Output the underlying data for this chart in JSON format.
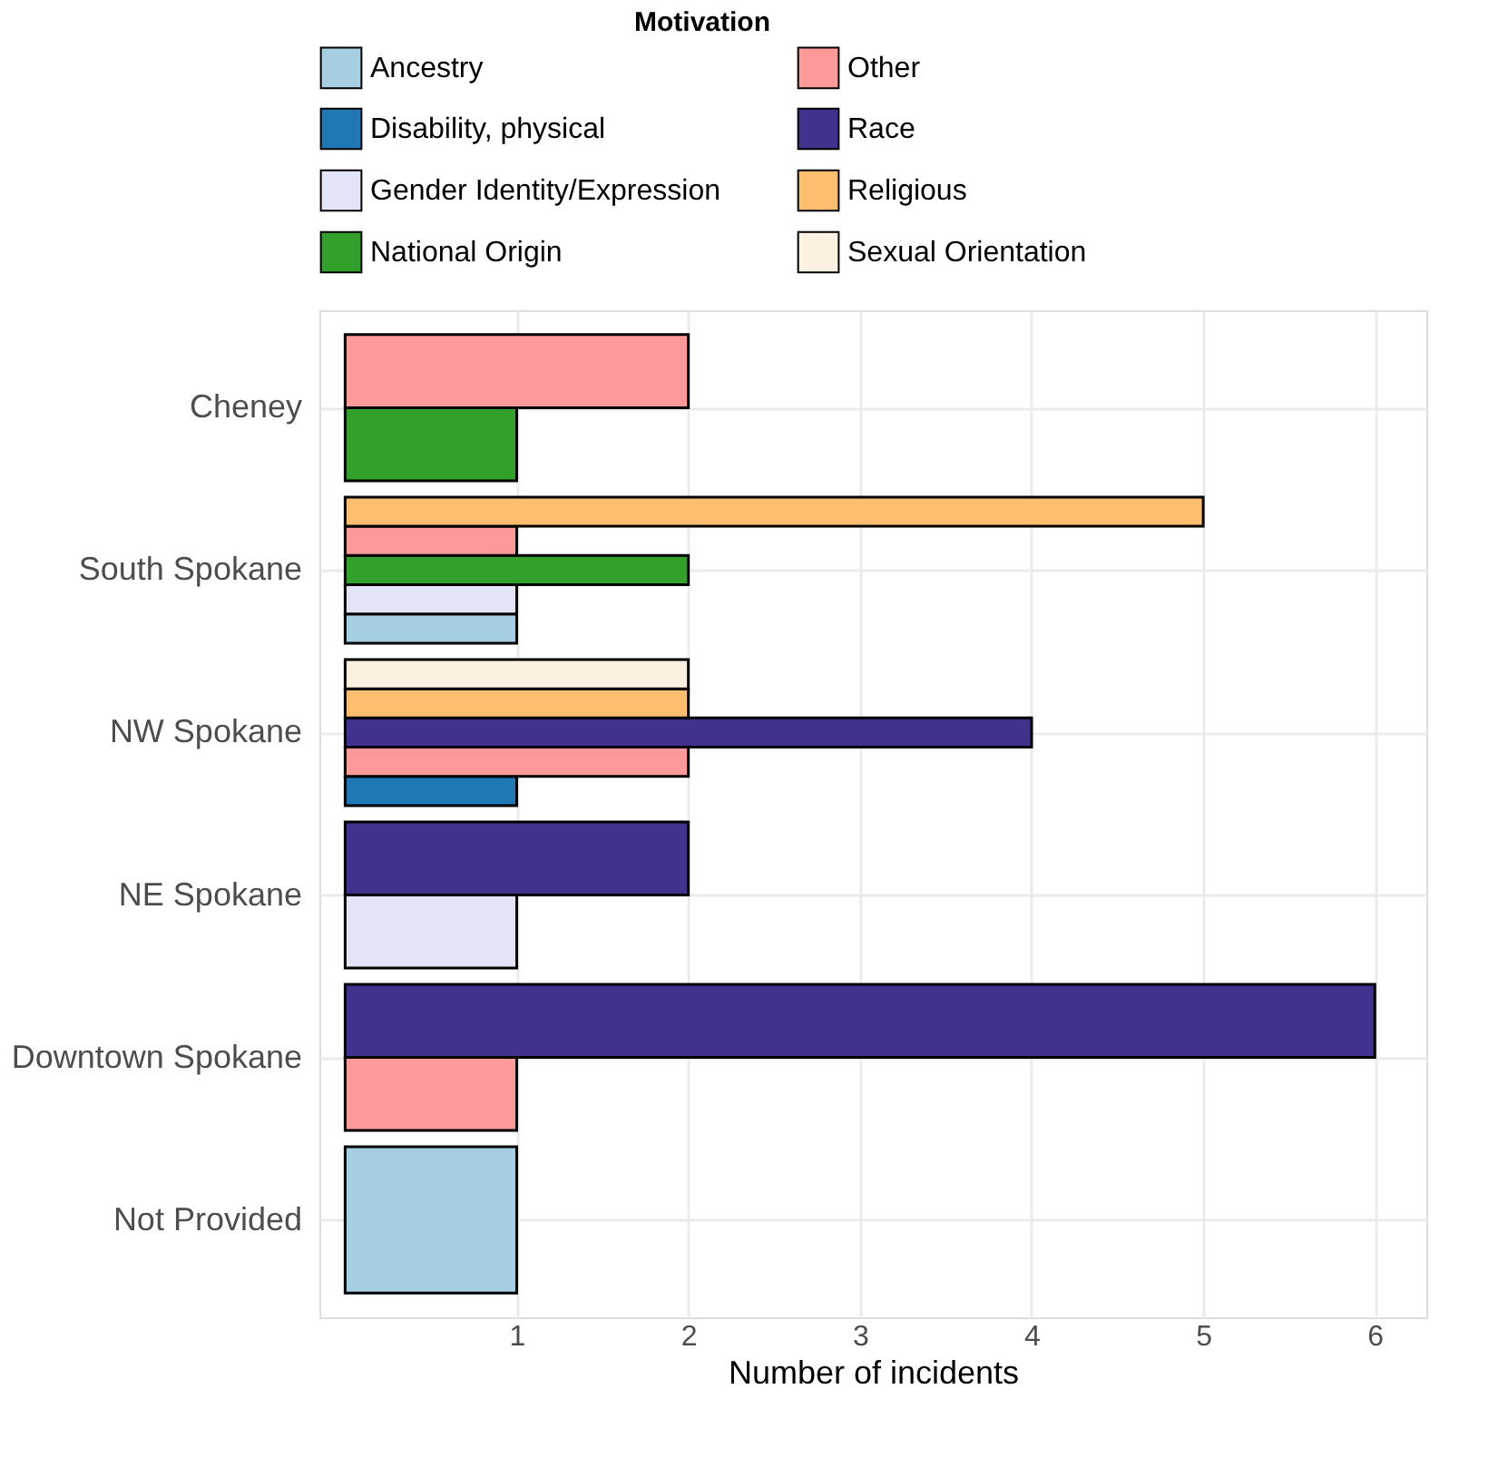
{
  "chart_data": {
    "type": "bar",
    "orientation": "horizontal",
    "xlabel": "Number of incidents",
    "legend_title": "Motivation",
    "legend": "top",
    "grid": true,
    "categories": [
      "Cheney",
      "South Spokane",
      "NW Spokane",
      "NE Spokane",
      "Downtown Spokane",
      "Not Provided"
    ],
    "xlim": [
      -0.15,
      6.3
    ],
    "xticks": [
      1,
      2,
      3,
      4,
      5,
      6
    ],
    "series": [
      {
        "name": "Ancestry",
        "color": "#a6cee3",
        "values": [
          null,
          1,
          null,
          null,
          null,
          1
        ]
      },
      {
        "name": "Disability, physical",
        "color": "#1f78b4",
        "values": [
          null,
          null,
          1,
          null,
          null,
          null
        ]
      },
      {
        "name": "Gender Identity/Expression",
        "color": "#e1e5f5",
        "values": [
          null,
          1,
          null,
          1,
          null,
          null
        ]
      },
      {
        "name": "National Origin",
        "color": "#33a02c",
        "values": [
          1,
          2,
          null,
          null,
          null,
          null
        ]
      },
      {
        "name": "Other",
        "color": "#fb9a99",
        "values": [
          2,
          1,
          2,
          null,
          1,
          null
        ]
      },
      {
        "name": "Race",
        "color": "#43328d",
        "values": [
          null,
          null,
          4,
          2,
          6,
          null
        ]
      },
      {
        "name": "Religious",
        "color": "#fdbf6f",
        "values": [
          null,
          5,
          2,
          null,
          null,
          null
        ]
      },
      {
        "name": "Sexual Orientation",
        "color": "#fcf0e0",
        "values": [
          null,
          null,
          2,
          null,
          null,
          null
        ]
      }
    ]
  }
}
